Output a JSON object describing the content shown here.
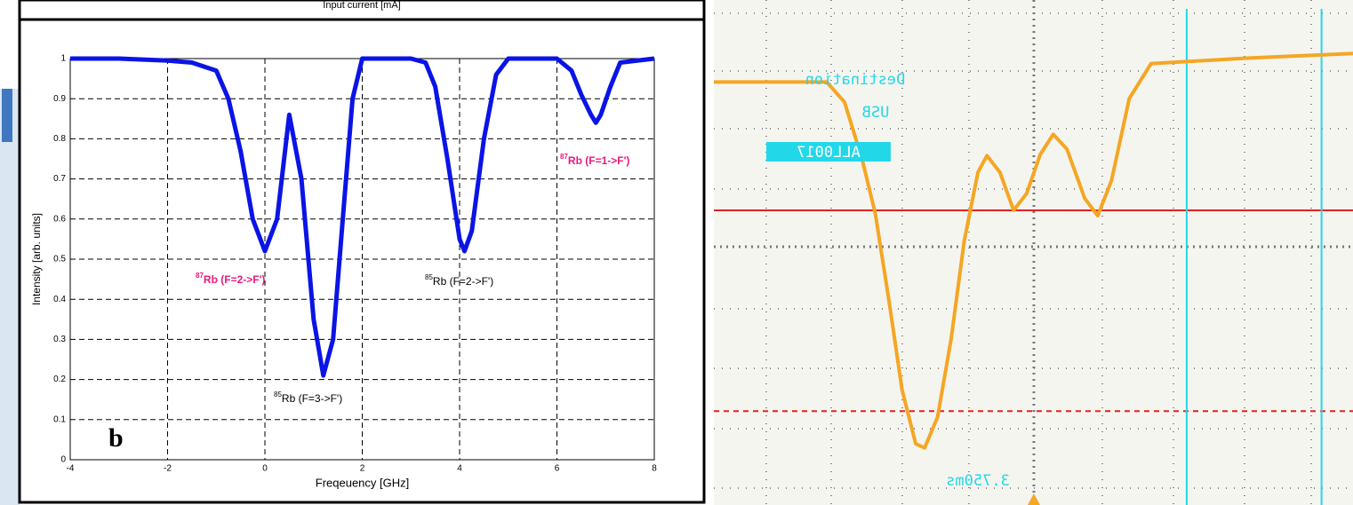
{
  "chart_data": [
    {
      "type": "line",
      "top_label": "Input current [mA]",
      "panel_label": "b",
      "x_label": "Freqeuency [GHz]",
      "y_label": "Intensity [arb. units]",
      "xlim": [
        -4,
        8
      ],
      "xticks": [
        -4,
        -2,
        0,
        2,
        4,
        6,
        8
      ],
      "ylim": [
        0,
        1
      ],
      "yticks": [
        0,
        0.1,
        0.2,
        0.3,
        0.4,
        0.5,
        0.6,
        0.7,
        0.8,
        0.9,
        1
      ],
      "grid": true,
      "x": [
        -4,
        -3,
        -2,
        -1.5,
        -1,
        -0.75,
        -0.5,
        -0.25,
        0,
        0.25,
        0.5,
        0.75,
        1,
        1.2,
        1.4,
        1.6,
        1.8,
        2,
        3,
        3.3,
        3.5,
        3.75,
        4,
        4.1,
        4.25,
        4.5,
        4.75,
        5,
        6,
        6.3,
        6.5,
        6.7,
        6.8,
        6.9,
        7.1,
        7.3,
        8
      ],
      "series": [
        {
          "color": "#0a14e6",
          "values": [
            1,
            1,
            0.995,
            0.99,
            0.97,
            0.9,
            0.77,
            0.6,
            0.52,
            0.6,
            0.86,
            0.7,
            0.35,
            0.21,
            0.3,
            0.6,
            0.9,
            1,
            1,
            0.99,
            0.93,
            0.75,
            0.55,
            0.52,
            0.57,
            0.8,
            0.96,
            1,
            1,
            0.97,
            0.91,
            0.86,
            0.84,
            0.86,
            0.93,
            0.99,
            1
          ]
        }
      ],
      "annotations": [
        {
          "sup": "87",
          "text": "Rb (F=2->F')",
          "color": "#e8197a"
        },
        {
          "sup": "85",
          "text": "Rb (F=2->F')",
          "color": "#000000"
        },
        {
          "sup": "85",
          "text": "Rb (F=3->F')",
          "color": "#000000"
        },
        {
          "sup": "87",
          "text": "Rb (F=1->F')",
          "color": "#e8197a"
        }
      ]
    },
    {
      "type": "line",
      "xlim": [
        0,
        9.34
      ],
      "ylim": [
        0,
        8.5
      ],
      "x": [
        0,
        1.65,
        1.91,
        2.17,
        2.36,
        2.56,
        2.75,
        2.95,
        3.08,
        3.27,
        3.47,
        3.66,
        3.86,
        3.99,
        4.18,
        4.38,
        4.57,
        4.77,
        4.96,
        5.16,
        5.42,
        5.61,
        5.81,
        6.07,
        6.39,
        7.75,
        9.34
      ],
      "series": [
        {
          "color": "#f5a623",
          "values": [
            7.12,
            7.12,
            6.78,
            5.81,
            4.9,
            3.43,
            1.94,
            1.03,
            0.96,
            1.48,
            2.81,
            4.45,
            5.6,
            5.88,
            5.6,
            4.96,
            5.24,
            5.9,
            6.24,
            5.99,
            5.16,
            4.87,
            5.46,
            6.84,
            7.43,
            7.52,
            7.6
          ]
        }
      ],
      "hlines": [
        {
          "value": 4.96,
          "color": "#e82020",
          "dashed": false
        },
        {
          "value": 1.58,
          "color": "#e82020",
          "dashed": true
        }
      ],
      "vlines": [
        {
          "value": 6.91,
          "color": "#22d8e8"
        },
        {
          "value": 8.88,
          "color": "#22d8e8"
        }
      ],
      "labels": [
        "Destination",
        "USB",
        "ALL0017",
        "3.750ms"
      ]
    }
  ]
}
